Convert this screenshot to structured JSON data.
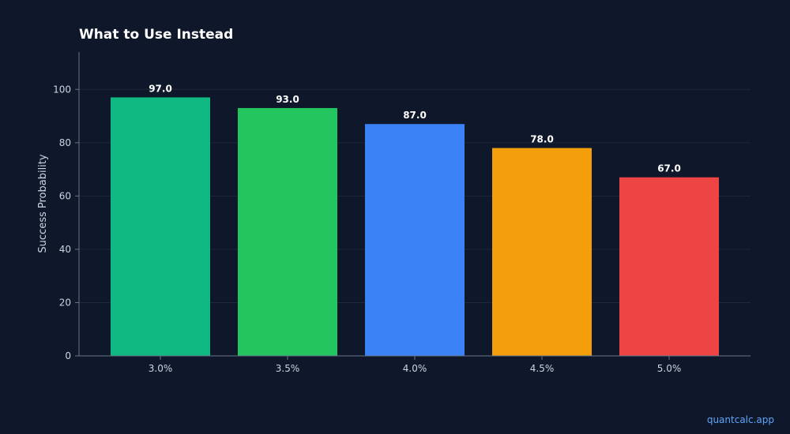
{
  "chart_data": {
    "type": "bar",
    "title": "What to Use Instead",
    "xlabel": "",
    "ylabel": "Success Probability",
    "categories": [
      "3.0%",
      "3.5%",
      "4.0%",
      "4.5%",
      "5.0%"
    ],
    "values": [
      97.0,
      93.0,
      87.0,
      78.0,
      67.0
    ],
    "data_labels": [
      "97.0",
      "93.0",
      "87.0",
      "78.0",
      "67.0"
    ],
    "colors": [
      "#10b981",
      "#22c55e",
      "#3b82f6",
      "#f59e0b",
      "#ef4444"
    ],
    "ylim": [
      0,
      114
    ],
    "yticks": [
      0,
      20,
      40,
      60,
      80,
      100
    ],
    "grid": true,
    "legend": "none"
  },
  "watermark": "quantcalc.app"
}
